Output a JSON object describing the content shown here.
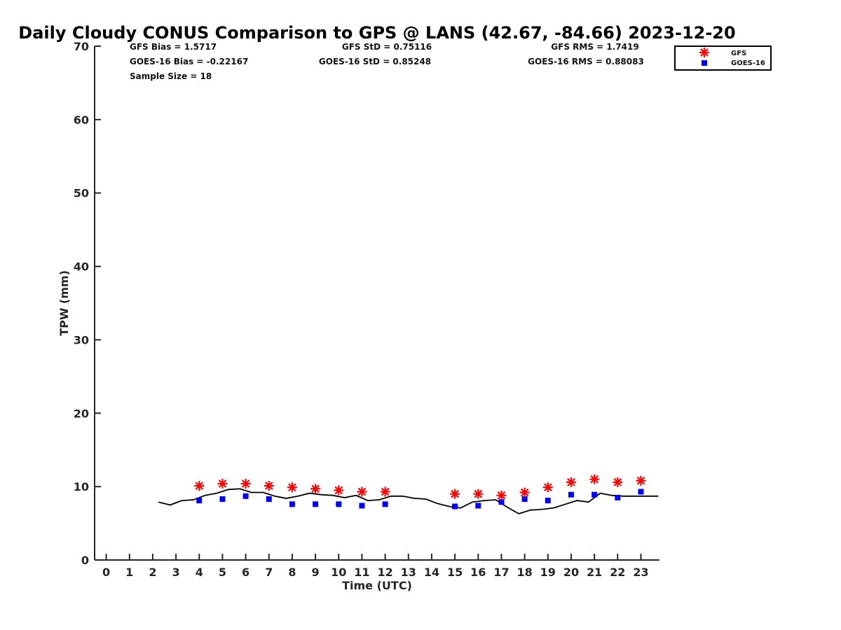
{
  "chart_data": {
    "type": "scatter",
    "title": "Daily Cloudy CONUS Comparison to GPS @ LANS (42.67, -84.66) 2023-12-20",
    "xlabel": "Time (UTC)",
    "ylabel": "TPW (mm)",
    "xlim": [
      -0.5,
      23.8
    ],
    "ylim": [
      0,
      70
    ],
    "xticks": [
      "0",
      "1",
      "2",
      "3",
      "4",
      "5",
      "6",
      "7",
      "8",
      "9",
      "10",
      "11",
      "12",
      "13",
      "14",
      "15",
      "16",
      "17",
      "18",
      "19",
      "20",
      "21",
      "22",
      "23"
    ],
    "yticks": [
      "0",
      "10",
      "20",
      "30",
      "40",
      "50",
      "60",
      "70"
    ],
    "grid": false,
    "legend_position": "top-right",
    "stats": {
      "gfs_bias": "GFS Bias = 1.5717",
      "goes_bias": "GOES-16 Bias = -0.22167",
      "sample_size": "Sample Size = 18",
      "gfs_std": "GFS StD = 0.75116",
      "goes_std": "GOES-16 StD = 0.85248",
      "gfs_rms": "GFS RMS = 1.7419",
      "goes_rms": "GOES-16 RMS = 0.88083"
    },
    "series": [
      {
        "name": "GFS",
        "marker": "asterisk",
        "color": "#ff0000",
        "x": [
          4,
          5,
          6,
          7,
          8,
          9,
          10,
          11,
          12,
          15,
          16,
          17,
          18,
          19,
          20,
          21,
          22,
          23
        ],
        "y": [
          10.1,
          10.4,
          10.4,
          10.1,
          9.9,
          9.7,
          9.5,
          9.3,
          9.3,
          9.0,
          9.0,
          8.8,
          9.2,
          9.9,
          10.6,
          11.0,
          10.6,
          10.8
        ]
      },
      {
        "name": "GOES-16",
        "marker": "square",
        "color": "#0000ff",
        "x": [
          4,
          5,
          6,
          7,
          8,
          9,
          10,
          11,
          12,
          15,
          16,
          17,
          18,
          19,
          20,
          21,
          22,
          23
        ],
        "y": [
          8.1,
          8.3,
          8.7,
          8.3,
          7.6,
          7.6,
          7.6,
          7.4,
          7.6,
          7.3,
          7.4,
          7.9,
          8.3,
          8.1,
          8.9,
          8.9,
          8.5,
          9.3
        ]
      },
      {
        "marker": "line",
        "color": "#000000",
        "x": [
          2.25,
          2.75,
          3.25,
          3.75,
          4.25,
          4.75,
          5.25,
          5.75,
          6.25,
          6.75,
          7.25,
          7.75,
          8.25,
          8.75,
          9.25,
          9.75,
          10.25,
          10.75,
          11.25,
          11.75,
          12.25,
          12.75,
          13.25,
          13.75,
          14.25,
          14.75,
          15.25,
          15.75,
          16.25,
          16.75,
          17.25,
          17.75,
          18.25,
          18.75,
          19.25,
          19.75,
          20.25,
          20.75,
          21.25,
          21.75,
          22.25,
          22.75,
          23.25,
          23.75
        ],
        "y": [
          7.9,
          7.5,
          8.1,
          8.2,
          8.8,
          9.1,
          9.6,
          9.7,
          9.2,
          9.2,
          8.7,
          8.4,
          8.7,
          9.1,
          8.9,
          8.8,
          8.5,
          8.8,
          8.1,
          8.2,
          8.7,
          8.7,
          8.4,
          8.3,
          7.7,
          7.3,
          7.1,
          7.9,
          8.1,
          8.2,
          7.2,
          6.3,
          6.8,
          6.9,
          7.1,
          7.6,
          8.1,
          7.9,
          9.1,
          8.8,
          8.7,
          8.7,
          8.7,
          8.7
        ]
      }
    ]
  }
}
